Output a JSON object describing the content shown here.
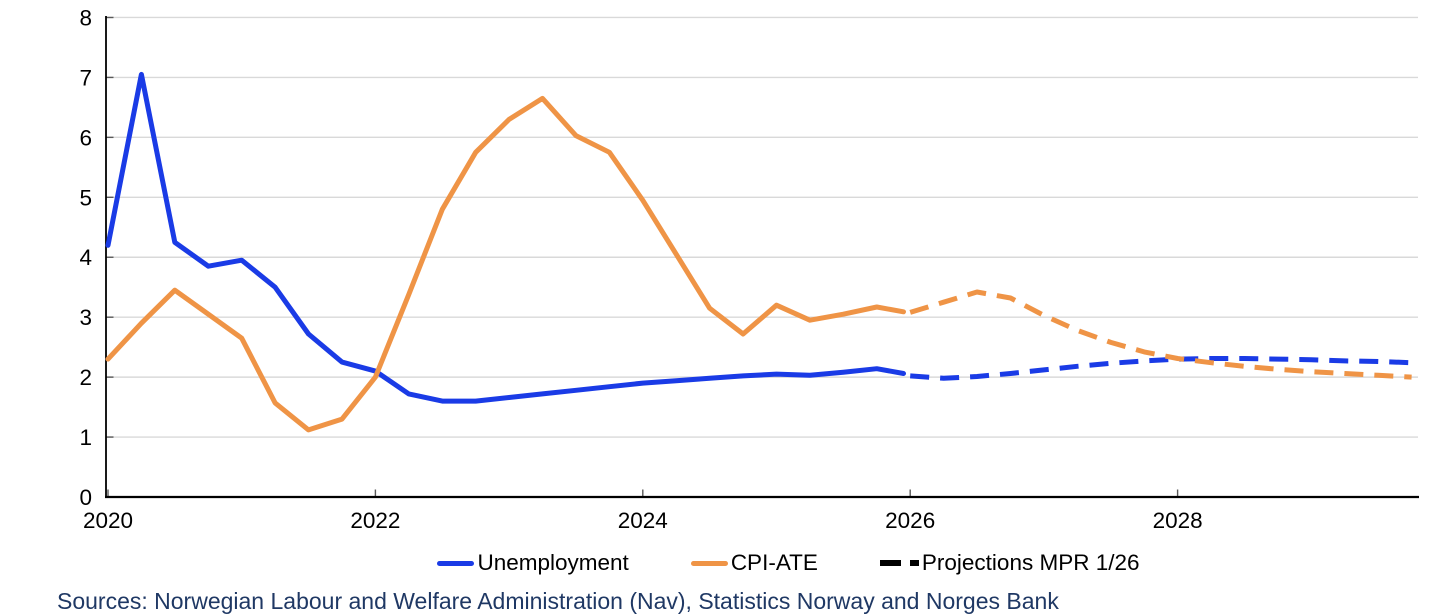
{
  "source_note": "Sources: Norwegian Labour and Welfare Administration (Nav), Statistics Norway and Norges Bank",
  "legend": {
    "items": [
      {
        "label": "Unemployment",
        "color": "#1a3be6",
        "style": "solid"
      },
      {
        "label": "CPI-ATE",
        "color": "#ef9446",
        "style": "solid"
      },
      {
        "label": "Projections MPR 1/26",
        "color": "#000000",
        "style": "dashed"
      }
    ]
  },
  "chart_data": {
    "type": "line",
    "title": "",
    "xlabel": "",
    "ylabel": "",
    "ylim": [
      0,
      8
    ],
    "yticks": [
      0,
      1,
      2,
      3,
      4,
      5,
      6,
      7,
      8
    ],
    "xticks": [
      2020,
      2022,
      2024,
      2026,
      2028
    ],
    "xlim": [
      2019.97,
      2029.8
    ],
    "grid": "horizontal",
    "grid_color": "#d9d9d9",
    "axis_color": "#000000",
    "tick_color": "#595959",
    "series": [
      {
        "id": "unemployment-line",
        "name": "Unemployment",
        "color": "#1a3be6",
        "dash": false,
        "x": [
          2020,
          2020.25,
          2020.5,
          2020.75,
          2021,
          2021.25,
          2021.5,
          2021.75,
          2022,
          2022.25,
          2022.5,
          2022.75,
          2023,
          2023.25,
          2023.5,
          2023.75,
          2024,
          2024.25,
          2024.5,
          2024.75,
          2025,
          2025.25,
          2025.5,
          2025.75,
          2025.95
        ],
        "values": [
          4.2,
          7.05,
          4.25,
          3.85,
          3.95,
          3.5,
          2.72,
          2.25,
          2.1,
          1.72,
          1.6,
          1.6,
          1.66,
          1.72,
          1.78,
          1.84,
          1.9,
          1.94,
          1.98,
          2.02,
          2.05,
          2.03,
          2.08,
          2.14,
          2.06
        ]
      },
      {
        "id": "unemployment-projection-line",
        "name": "Unemployment projection MPR 1/26",
        "color": "#1a3be6",
        "dash": true,
        "x": [
          2026,
          2026.25,
          2026.5,
          2026.75,
          2027,
          2027.25,
          2027.5,
          2027.75,
          2028,
          2028.25,
          2028.5,
          2028.75,
          2029,
          2029.25,
          2029.5,
          2029.75
        ],
        "values": [
          2.02,
          1.98,
          2.01,
          2.06,
          2.12,
          2.18,
          2.23,
          2.27,
          2.3,
          2.31,
          2.31,
          2.3,
          2.29,
          2.27,
          2.26,
          2.24
        ]
      },
      {
        "id": "cpi-ate-line",
        "name": "CPI-ATE",
        "color": "#ef9446",
        "dash": false,
        "x": [
          2020,
          2020.25,
          2020.5,
          2020.75,
          2021,
          2021.25,
          2021.5,
          2021.75,
          2022,
          2022.25,
          2022.5,
          2022.75,
          2023,
          2023.25,
          2023.5,
          2023.75,
          2024,
          2024.25,
          2024.5,
          2024.75,
          2025,
          2025.25,
          2025.5,
          2025.75,
          2025.95
        ],
        "values": [
          2.3,
          2.9,
          3.45,
          3.05,
          2.65,
          1.57,
          1.12,
          1.3,
          2.0,
          3.38,
          4.8,
          5.75,
          6.3,
          6.65,
          6.03,
          5.75,
          4.95,
          4.05,
          3.15,
          2.72,
          3.2,
          2.95,
          3.05,
          3.17,
          3.09
        ]
      },
      {
        "id": "cpi-ate-projection-line",
        "name": "CPI-ATE projection MPR 1/26",
        "color": "#ef9446",
        "dash": true,
        "x": [
          2026,
          2026.25,
          2026.5,
          2026.75,
          2027,
          2027.25,
          2027.5,
          2027.75,
          2028,
          2028.25,
          2028.5,
          2028.75,
          2029,
          2029.25,
          2029.5,
          2029.75
        ],
        "values": [
          3.08,
          3.25,
          3.42,
          3.32,
          3.03,
          2.78,
          2.58,
          2.42,
          2.31,
          2.24,
          2.18,
          2.13,
          2.09,
          2.06,
          2.03,
          2.0
        ]
      }
    ]
  }
}
